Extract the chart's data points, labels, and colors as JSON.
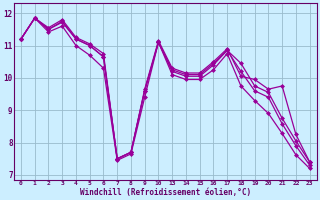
{
  "xlabel": "Windchill (Refroidissement éolien,°C)",
  "bg_color": "#cceeff",
  "line_color": "#990099",
  "grid_color": "#99bbcc",
  "axis_label_color": "#660066",
  "tick_color": "#660066",
  "border_color": "#660066",
  "series1_x": [
    0,
    1,
    2,
    3,
    4,
    5,
    6,
    7,
    8,
    9,
    10,
    13,
    14,
    15,
    16,
    17,
    18,
    19,
    20,
    21,
    22,
    23
  ],
  "series1_y": [
    11.2,
    11.85,
    11.55,
    11.8,
    11.25,
    11.05,
    10.75,
    7.5,
    7.7,
    9.65,
    11.15,
    10.3,
    10.15,
    10.15,
    10.5,
    10.9,
    10.05,
    9.95,
    9.65,
    9.75,
    8.25,
    7.4
  ],
  "series2_x": [
    0,
    1,
    2,
    3,
    4,
    5,
    6,
    7,
    8,
    9,
    10,
    13,
    14,
    15,
    16,
    17,
    18,
    19,
    20,
    21,
    22,
    23
  ],
  "series2_y": [
    11.2,
    11.85,
    11.5,
    11.75,
    11.2,
    11.0,
    10.65,
    7.5,
    7.7,
    9.6,
    11.1,
    10.25,
    10.1,
    10.1,
    10.45,
    10.85,
    10.45,
    9.75,
    9.55,
    8.75,
    8.05,
    7.4
  ],
  "series3_x": [
    0,
    1,
    2,
    3,
    4,
    5,
    6,
    7,
    8,
    9,
    10,
    13,
    14,
    15,
    16,
    17,
    18,
    19,
    20,
    21,
    22,
    23
  ],
  "series3_y": [
    11.2,
    11.85,
    11.5,
    11.72,
    11.2,
    11.0,
    10.65,
    7.5,
    7.7,
    9.6,
    11.1,
    10.2,
    10.05,
    10.05,
    10.4,
    10.85,
    10.2,
    9.6,
    9.4,
    8.58,
    7.9,
    7.3
  ],
  "series4_x": [
    0,
    1,
    2,
    3,
    4,
    5,
    6,
    7,
    8,
    9,
    10,
    13,
    14,
    15,
    16,
    17,
    18,
    19,
    20,
    21,
    22,
    23
  ],
  "series4_y": [
    11.2,
    11.85,
    11.42,
    11.6,
    11.0,
    10.7,
    10.3,
    7.45,
    7.65,
    9.4,
    11.1,
    10.1,
    9.95,
    9.95,
    10.25,
    10.75,
    9.75,
    9.3,
    8.9,
    8.28,
    7.62,
    7.2
  ],
  "yticks": [
    7,
    8,
    9,
    10,
    11,
    12
  ],
  "ylim_min": 6.85,
  "ylim_max": 12.3,
  "xlim_min": -0.5,
  "xlim_max": 23.5,
  "marker": "D",
  "markersize": 2.0,
  "linewidth": 0.9
}
